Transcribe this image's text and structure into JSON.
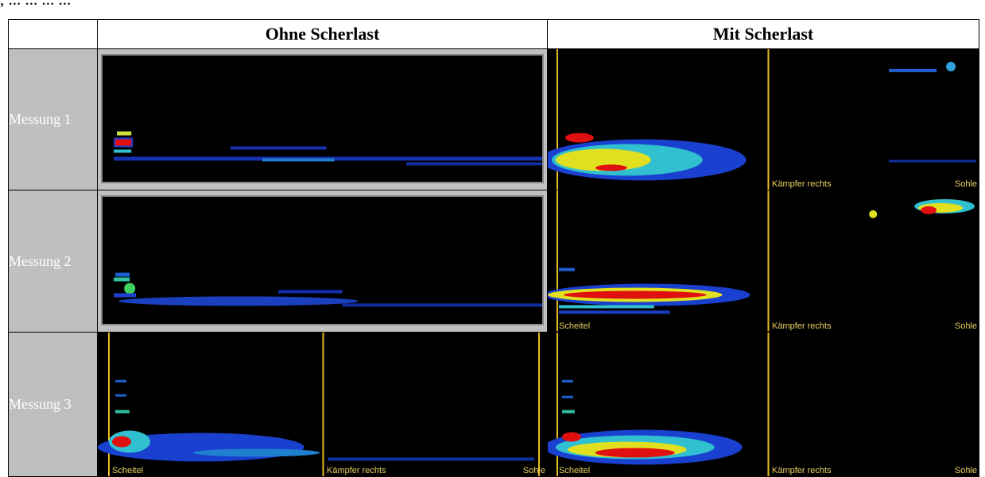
{
  "top_text": ", ... ... ... ...",
  "columns": [
    "Ohne Scherlast",
    "Mit Scherlast"
  ],
  "rows": [
    "Messung 1",
    "Messung 2",
    "Messung 3"
  ],
  "overlay_labels": {
    "scheitel": "Scheitel",
    "kaempfer": "Kämpfer rechts",
    "sohle": "Sohle"
  },
  "colors": {
    "rowlabel_bg": "#bfbfbf",
    "image_bg": "#000000",
    "marker_line": "#e8c020",
    "heat_low": "#1030c0",
    "heat_mid": "#30c0d0",
    "heat_high": "#e0e020",
    "heat_max": "#e01010"
  }
}
